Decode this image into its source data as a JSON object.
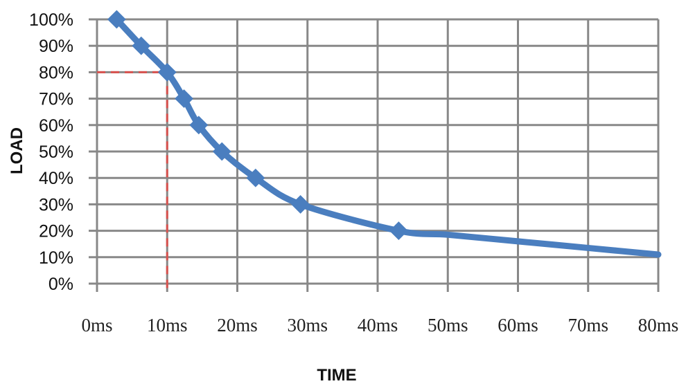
{
  "chart_data": {
    "type": "line",
    "title": "",
    "xlabel": "TIME",
    "ylabel": "LOAD",
    "xlim": [
      0,
      80
    ],
    "ylim": [
      0,
      100
    ],
    "x_ticks": [
      "0ms",
      "10ms",
      "20ms",
      "30ms",
      "40ms",
      "50ms",
      "60ms",
      "70ms",
      "80ms"
    ],
    "y_ticks": [
      "0%",
      "10%",
      "20%",
      "30%",
      "40%",
      "50%",
      "60%",
      "70%",
      "80%",
      "90%",
      "100%"
    ],
    "grid": true,
    "series": [
      {
        "color": "#4a7ebf",
        "markers": "diamond",
        "points": [
          {
            "x": 2.8,
            "y": 100
          },
          {
            "x": 6.3,
            "y": 90
          },
          {
            "x": 10,
            "y": 80
          },
          {
            "x": 12.4,
            "y": 70
          },
          {
            "x": 14.5,
            "y": 60
          },
          {
            "x": 17.8,
            "y": 50
          },
          {
            "x": 22.6,
            "y": 40
          },
          {
            "x": 29,
            "y": 30
          },
          {
            "x": 43,
            "y": 20
          }
        ],
        "tail": [
          {
            "x": 50,
            "y": 18.5
          },
          {
            "x": 60,
            "y": 16
          },
          {
            "x": 70,
            "y": 13.5
          },
          {
            "x": 80,
            "y": 11
          }
        ]
      }
    ],
    "annotations": [
      {
        "type": "dashed-guide",
        "color": "#d9534f",
        "x": 10,
        "y": 80
      }
    ]
  }
}
